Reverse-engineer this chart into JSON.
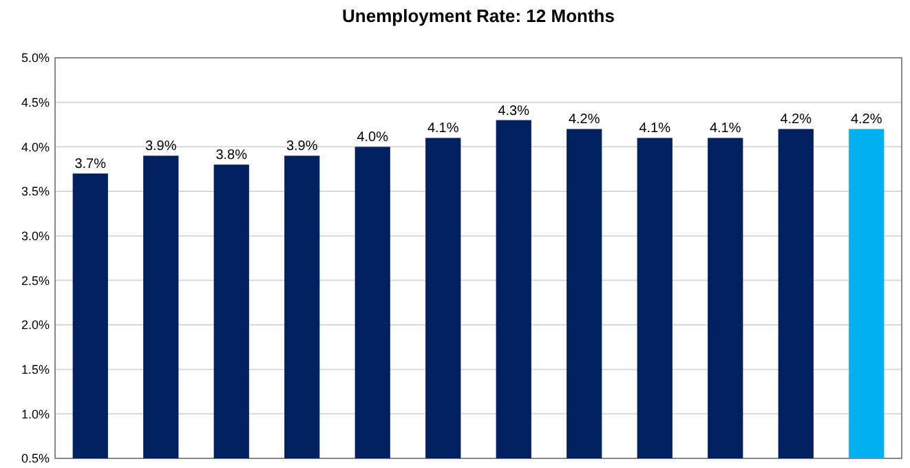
{
  "chart_data": {
    "type": "bar",
    "title": "Unemployment Rate: 12 Months",
    "categories": [
      null,
      null,
      null,
      null,
      null,
      null,
      null,
      null,
      null,
      null,
      null,
      null
    ],
    "values": [
      3.7,
      3.9,
      3.8,
      3.9,
      4.0,
      4.1,
      4.3,
      4.2,
      4.1,
      4.1,
      4.2,
      4.2
    ],
    "colors": [
      "#002060",
      "#002060",
      "#002060",
      "#002060",
      "#002060",
      "#002060",
      "#002060",
      "#002060",
      "#002060",
      "#002060",
      "#002060",
      "#00b0f0"
    ],
    "value_labels": [
      "3.7%",
      "3.9%",
      "3.8%",
      "3.9%",
      "4.0%",
      "4.1%",
      "4.3%",
      "4.2%",
      "4.1%",
      "4.1%",
      "4.2%",
      "4.2%"
    ],
    "ylim": [
      0.5,
      5.0
    ],
    "yticks": [
      {
        "value": 0.5,
        "label": "0.5%"
      },
      {
        "value": 1.0,
        "label": "1.0%"
      },
      {
        "value": 1.5,
        "label": "1.5%"
      },
      {
        "value": 2.0,
        "label": "2.0%"
      },
      {
        "value": 2.5,
        "label": "2.5%"
      },
      {
        "value": 3.0,
        "label": "3.0%"
      },
      {
        "value": 3.5,
        "label": "3.5%"
      },
      {
        "value": 4.0,
        "label": "4.0%"
      },
      {
        "value": 4.5,
        "label": "4.5%"
      },
      {
        "value": 5.0,
        "label": "5.0%"
      }
    ],
    "grid": "y"
  }
}
